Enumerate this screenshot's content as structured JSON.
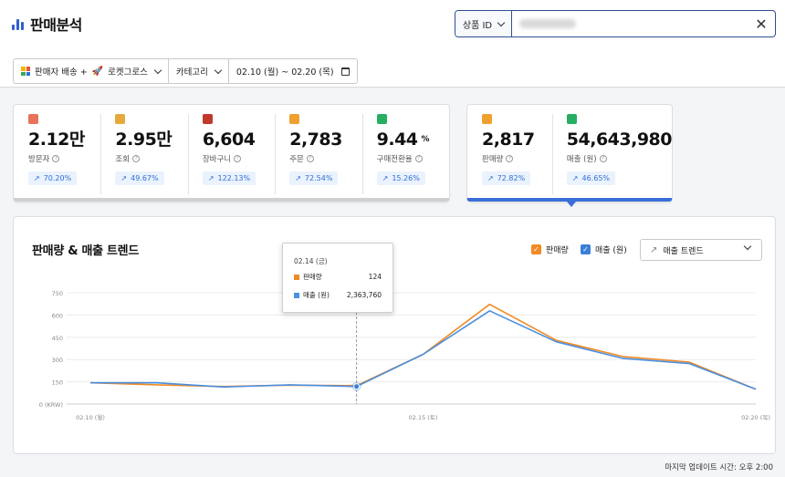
{
  "header": {
    "title": "판매분석",
    "search_type_label": "상품 ID",
    "search_placeholder": "",
    "clear_icon": "close-icon"
  },
  "filters": {
    "seller": "판매자 배송 +",
    "rocket": "로켓그로스",
    "category": "카테고리",
    "date_range": "02.10 (월) ~ 02.20 (목)"
  },
  "kpis": [
    {
      "icon": "person-icon",
      "icon_color": "#e8735a",
      "value": "2.12만",
      "unit": "",
      "label": "방문자",
      "change": "70.20%"
    },
    {
      "icon": "eye-icon",
      "icon_color": "#e6a93c",
      "value": "2.95만",
      "unit": "",
      "label": "조회",
      "change": "49.67%"
    },
    {
      "icon": "cart-icon",
      "icon_color": "#c0392b",
      "value": "6,604",
      "unit": "",
      "label": "장바구니",
      "change": "122.13%"
    },
    {
      "icon": "box-icon",
      "icon_color": "#f0a030",
      "value": "2,783",
      "unit": "",
      "label": "주문",
      "change": "72.54%"
    },
    {
      "icon": "check-icon",
      "icon_color": "#27ae60",
      "value": "9.44",
      "unit": "%",
      "label": "구매전환율",
      "change": "15.26%"
    }
  ],
  "kpis_selected": [
    {
      "icon": "fire-icon",
      "icon_color": "#f0a030",
      "value": "2,817",
      "label": "판매량",
      "change": "72.82%"
    },
    {
      "icon": "money-icon",
      "icon_color": "#27ae60",
      "value": "54,643,980",
      "label": "매출 (원)",
      "change": "46.65%"
    }
  ],
  "chart_section": {
    "title": "판매량 & 매출 트렌드",
    "legend_sales_qty": "판매량",
    "legend_revenue": "매출 (원)",
    "trend_select": "매출 트렌드",
    "tooltip": {
      "date": "02.14 (금)",
      "qty_label": "판매량",
      "qty_value": "124",
      "rev_label": "매출 (원)",
      "rev_value": "2,363,760"
    }
  },
  "chart_data": {
    "type": "line",
    "title": "판매량 & 매출 트렌드",
    "x": [
      "02.10 (월)",
      "02.11",
      "02.12",
      "02.13",
      "02.14",
      "02.15 (토)",
      "02.16",
      "02.17",
      "02.18",
      "02.19",
      "02.20 (목)"
    ],
    "x_tick_labels": [
      "02.10 (월)",
      "02.15 (토)",
      "02.20 (목)"
    ],
    "y_ticks": [
      "750",
      "600",
      "450",
      "300",
      "150",
      "0 (KRW)"
    ],
    "ylim": [
      0,
      750
    ],
    "grid": true,
    "series": [
      {
        "name": "판매량",
        "color": "#f08a24",
        "values": [
          143,
          130,
          118,
          127,
          124,
          335,
          672,
          430,
          320,
          283,
          100
        ]
      },
      {
        "name": "매출 (원)",
        "color": "#4a8fe0",
        "values": [
          143,
          143,
          115,
          130,
          118,
          335,
          628,
          420,
          308,
          273,
          100
        ]
      }
    ]
  },
  "footer": {
    "last_update": "마지막 업데이트 시간: 오후 2:00"
  }
}
